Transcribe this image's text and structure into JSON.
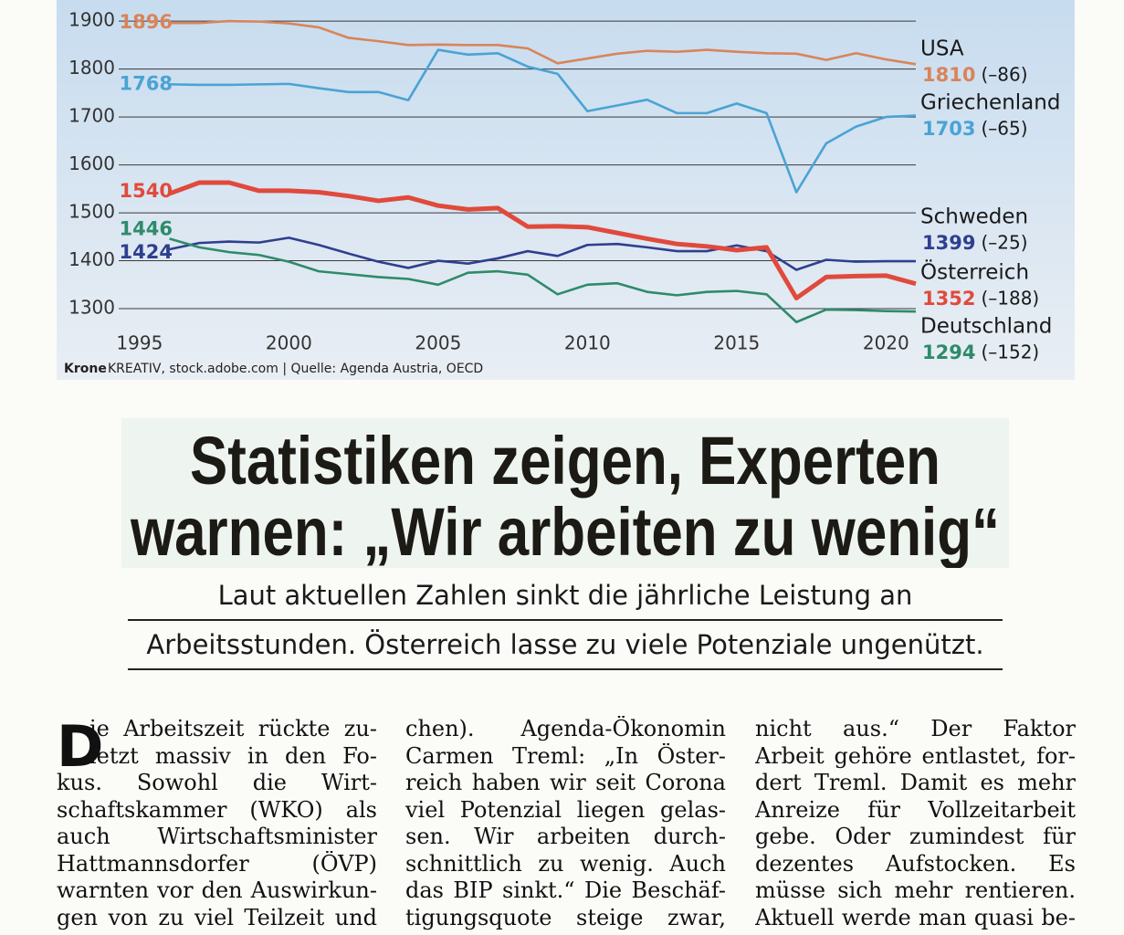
{
  "chart_data": {
    "type": "line",
    "x": [
      1996,
      1997,
      1998,
      1999,
      2000,
      2001,
      2002,
      2003,
      2004,
      2005,
      2006,
      2007,
      2008,
      2009,
      2010,
      2011,
      2012,
      2013,
      2014,
      2015,
      2016,
      2017,
      2018,
      2019,
      2020,
      2021
    ],
    "xlim": [
      1994.3,
      2021
    ],
    "xticks": [
      1995,
      2000,
      2005,
      2010,
      2015,
      2020
    ],
    "ylim": [
      1250,
      1944
    ],
    "yticks": [
      1300,
      1400,
      1500,
      1600,
      1700,
      1800,
      1900
    ],
    "grid": true,
    "series": [
      {
        "name": "USA",
        "color": "#d9845a",
        "change": {
          "value": -86,
          "label": "(–86)"
        },
        "values": [
          1896,
          1896,
          1900,
          1899,
          1895,
          1887,
          1865,
          1858,
          1850,
          1851,
          1850,
          1850,
          1843,
          1812,
          1822,
          1832,
          1838,
          1836,
          1840,
          1836,
          1833,
          1832,
          1819,
          1833,
          1820,
          1810
        ]
      },
      {
        "name": "Griechenland",
        "color": "#4aa3d4",
        "change": {
          "value": -65,
          "label": "(–65)"
        },
        "values": [
          1768,
          1767,
          1767,
          1768,
          1769,
          1760,
          1752,
          1752,
          1735,
          1840,
          1830,
          1833,
          1805,
          1790,
          1712,
          1724,
          1736,
          1708,
          1708,
          1728,
          1708,
          1543,
          1645,
          1680,
          1700,
          1703
        ]
      },
      {
        "name": "Schweden",
        "color": "#2f3f8f",
        "change": {
          "value": -25,
          "label": "(–25)"
        },
        "values": [
          1424,
          1437,
          1440,
          1438,
          1448,
          1433,
          1415,
          1398,
          1385,
          1400,
          1394,
          1405,
          1420,
          1410,
          1433,
          1435,
          1428,
          1420,
          1420,
          1432,
          1420,
          1381,
          1402,
          1398,
          1399,
          1399
        ]
      },
      {
        "name": "Österreich",
        "color": "#e04a3c",
        "change": {
          "value": -188,
          "label": "(–188)"
        },
        "values": [
          1540,
          1563,
          1563,
          1546,
          1546,
          1543,
          1535,
          1525,
          1532,
          1515,
          1507,
          1510,
          1471,
          1472,
          1470,
          1458,
          1446,
          1435,
          1430,
          1422,
          1428,
          1322,
          1366,
          1368,
          1369,
          1352
        ]
      },
      {
        "name": "Deutschland",
        "color": "#2e8b6a",
        "change": {
          "value": -152,
          "label": "(–152)"
        },
        "values": [
          1446,
          1428,
          1418,
          1412,
          1398,
          1378,
          1372,
          1366,
          1362,
          1350,
          1375,
          1378,
          1371,
          1330,
          1350,
          1353,
          1335,
          1328,
          1335,
          1337,
          1330,
          1272,
          1298,
          1297,
          1295,
          1294
        ]
      }
    ],
    "source_brand": "Krone",
    "source": "KREATIV, stock.adobe.com | Quelle: Agenda Austria, OECD"
  },
  "headline": [
    "Statistiken zeigen, Experten",
    "warnen: „Wir arbeiten zu wenig“"
  ],
  "subtitle": [
    "Laut aktuellen Zahlen sinkt die jährliche Leistung an",
    "Arbeitsstunden. Österreich lasse zu viele Potenziale ungenützt."
  ],
  "body": {
    "dropcap": "D",
    "columns": [
      [
        "ie Arbeitszeit rückte zu-",
        "letzt massiv in den Fo-",
        "kus. Sowohl die Wirt-",
        "schaftskammer (WKO) als",
        "auch Wirtschaftsminister",
        "Hattmannsdorfer (ÖVP)",
        "warnten vor den Auswirkun-",
        "gen von zu viel Teilzeit und"
      ],
      [
        "chen). Agenda-Ökonomin",
        "Carmen Treml: „In Öster-",
        "reich haben wir seit Corona",
        "viel Potenzial liegen gelas-",
        "sen. Wir arbeiten durch-",
        "schnittlich zu wenig. Auch",
        "das BIP sinkt.“ Die Beschäf-",
        "tigungsquote steige zwar,"
      ],
      [
        "nicht aus.“ Der Faktor",
        "Arbeit gehöre entlastet, for-",
        "dert Treml. Damit es mehr",
        "Anreize für Vollzeitarbeit",
        "gebe. Oder zumindest für",
        "dezentes Aufstocken. Es",
        "müsse sich mehr rentieren.",
        "Aktuell werde man quasi be-"
      ]
    ]
  }
}
